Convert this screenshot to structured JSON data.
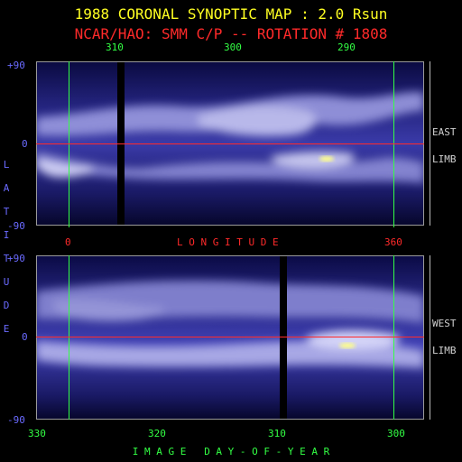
{
  "title": "1988 CORONAL SYNOPTIC MAP : 2.0 Rsun",
  "subtitle": "NCAR/HAO: SMM C/P -- ROTATION # 1808",
  "top_map": {
    "day_ticks": [
      "310",
      "300",
      "290"
    ],
    "lat_ticks": [
      "+90",
      "0",
      "-90"
    ],
    "side_label_1": "EAST",
    "side_label_2": "LIMB"
  },
  "middle_axis": {
    "left_tick": "0",
    "label": "L O N G I T U D E",
    "right_tick": "360"
  },
  "bottom_map": {
    "lat_ticks": [
      "+90",
      "0",
      "-90"
    ],
    "day_ticks": [
      "330",
      "320",
      "310",
      "300"
    ],
    "side_label_1": "WEST",
    "side_label_2": "LIMB"
  },
  "lat_axis_label": [
    "L",
    "A",
    "T",
    "I",
    "T",
    "U",
    "D",
    "E"
  ],
  "x_axis_label": "I M A G E   D A Y - O F - Y E A R",
  "colors": {
    "title": "#ffff22",
    "subtitle": "#ff2a2a",
    "day_ticks_top": "#33ff44",
    "lat_labels": "#6a6aff",
    "longitude": "#ff2a2a",
    "day_ticks_bottom": "#33ff44",
    "side_labels": "#d0d0d0"
  }
}
